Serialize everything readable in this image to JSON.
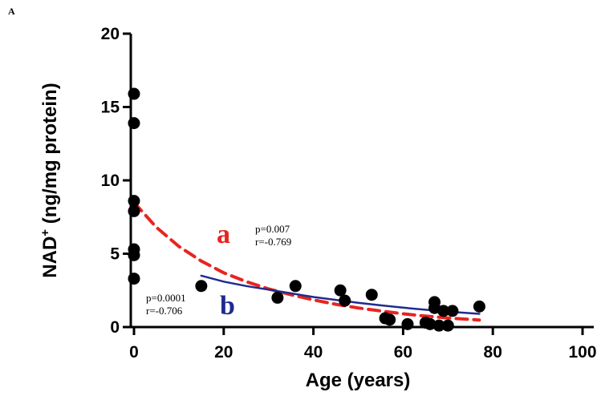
{
  "panel_label": "A",
  "chart_data": {
    "type": "scatter",
    "xlabel": "Age (years)",
    "ylabel_main": "NAD",
    "ylabel_sup": "+",
    "ylabel_rest": " (ng/mg protein)",
    "xlim": [
      0,
      100
    ],
    "ylim": [
      0,
      20
    ],
    "xticks": [
      0,
      20,
      40,
      60,
      80,
      100
    ],
    "yticks": [
      0,
      5,
      10,
      15,
      20
    ],
    "grid": false,
    "points": [
      {
        "x": 0,
        "y": 15.9
      },
      {
        "x": 0,
        "y": 13.9
      },
      {
        "x": 0,
        "y": 8.6
      },
      {
        "x": 0,
        "y": 7.9
      },
      {
        "x": 0,
        "y": 5.3
      },
      {
        "x": 0,
        "y": 4.9
      },
      {
        "x": 0,
        "y": 3.3
      },
      {
        "x": 15,
        "y": 2.8
      },
      {
        "x": 32,
        "y": 2.0
      },
      {
        "x": 36,
        "y": 2.8
      },
      {
        "x": 46,
        "y": 2.5
      },
      {
        "x": 47,
        "y": 1.8
      },
      {
        "x": 53,
        "y": 2.2
      },
      {
        "x": 56,
        "y": 0.6
      },
      {
        "x": 57,
        "y": 0.5
      },
      {
        "x": 61,
        "y": 0.2
      },
      {
        "x": 65,
        "y": 0.3
      },
      {
        "x": 66,
        "y": 0.2
      },
      {
        "x": 67,
        "y": 1.7
      },
      {
        "x": 67,
        "y": 1.3
      },
      {
        "x": 68,
        "y": 0.1
      },
      {
        "x": 69,
        "y": 1.1
      },
      {
        "x": 70,
        "y": 0.1
      },
      {
        "x": 71,
        "y": 1.1
      },
      {
        "x": 77,
        "y": 1.4
      }
    ],
    "series": [
      {
        "label": "a",
        "color": "#e8241f",
        "style": "dashed",
        "x": [
          0,
          5,
          10,
          15,
          20,
          25,
          30,
          35,
          40,
          45,
          50,
          55,
          60,
          65,
          70,
          75,
          77
        ],
        "y": [
          8.5,
          6.8,
          5.5,
          4.5,
          3.7,
          3.1,
          2.6,
          2.2,
          1.85,
          1.55,
          1.3,
          1.1,
          0.9,
          0.75,
          0.62,
          0.52,
          0.48
        ],
        "p": "p=0.007",
        "r": "r=-0.769"
      },
      {
        "label": "b",
        "color": "#1f2b8e",
        "style": "solid",
        "x": [
          15,
          20,
          25,
          30,
          35,
          40,
          45,
          50,
          55,
          60,
          65,
          70,
          77
        ],
        "y": [
          3.5,
          3.1,
          2.8,
          2.55,
          2.3,
          2.05,
          1.85,
          1.65,
          1.48,
          1.32,
          1.18,
          1.05,
          0.9
        ],
        "p": "p=0.0001",
        "r": "r=-0.706"
      }
    ]
  }
}
